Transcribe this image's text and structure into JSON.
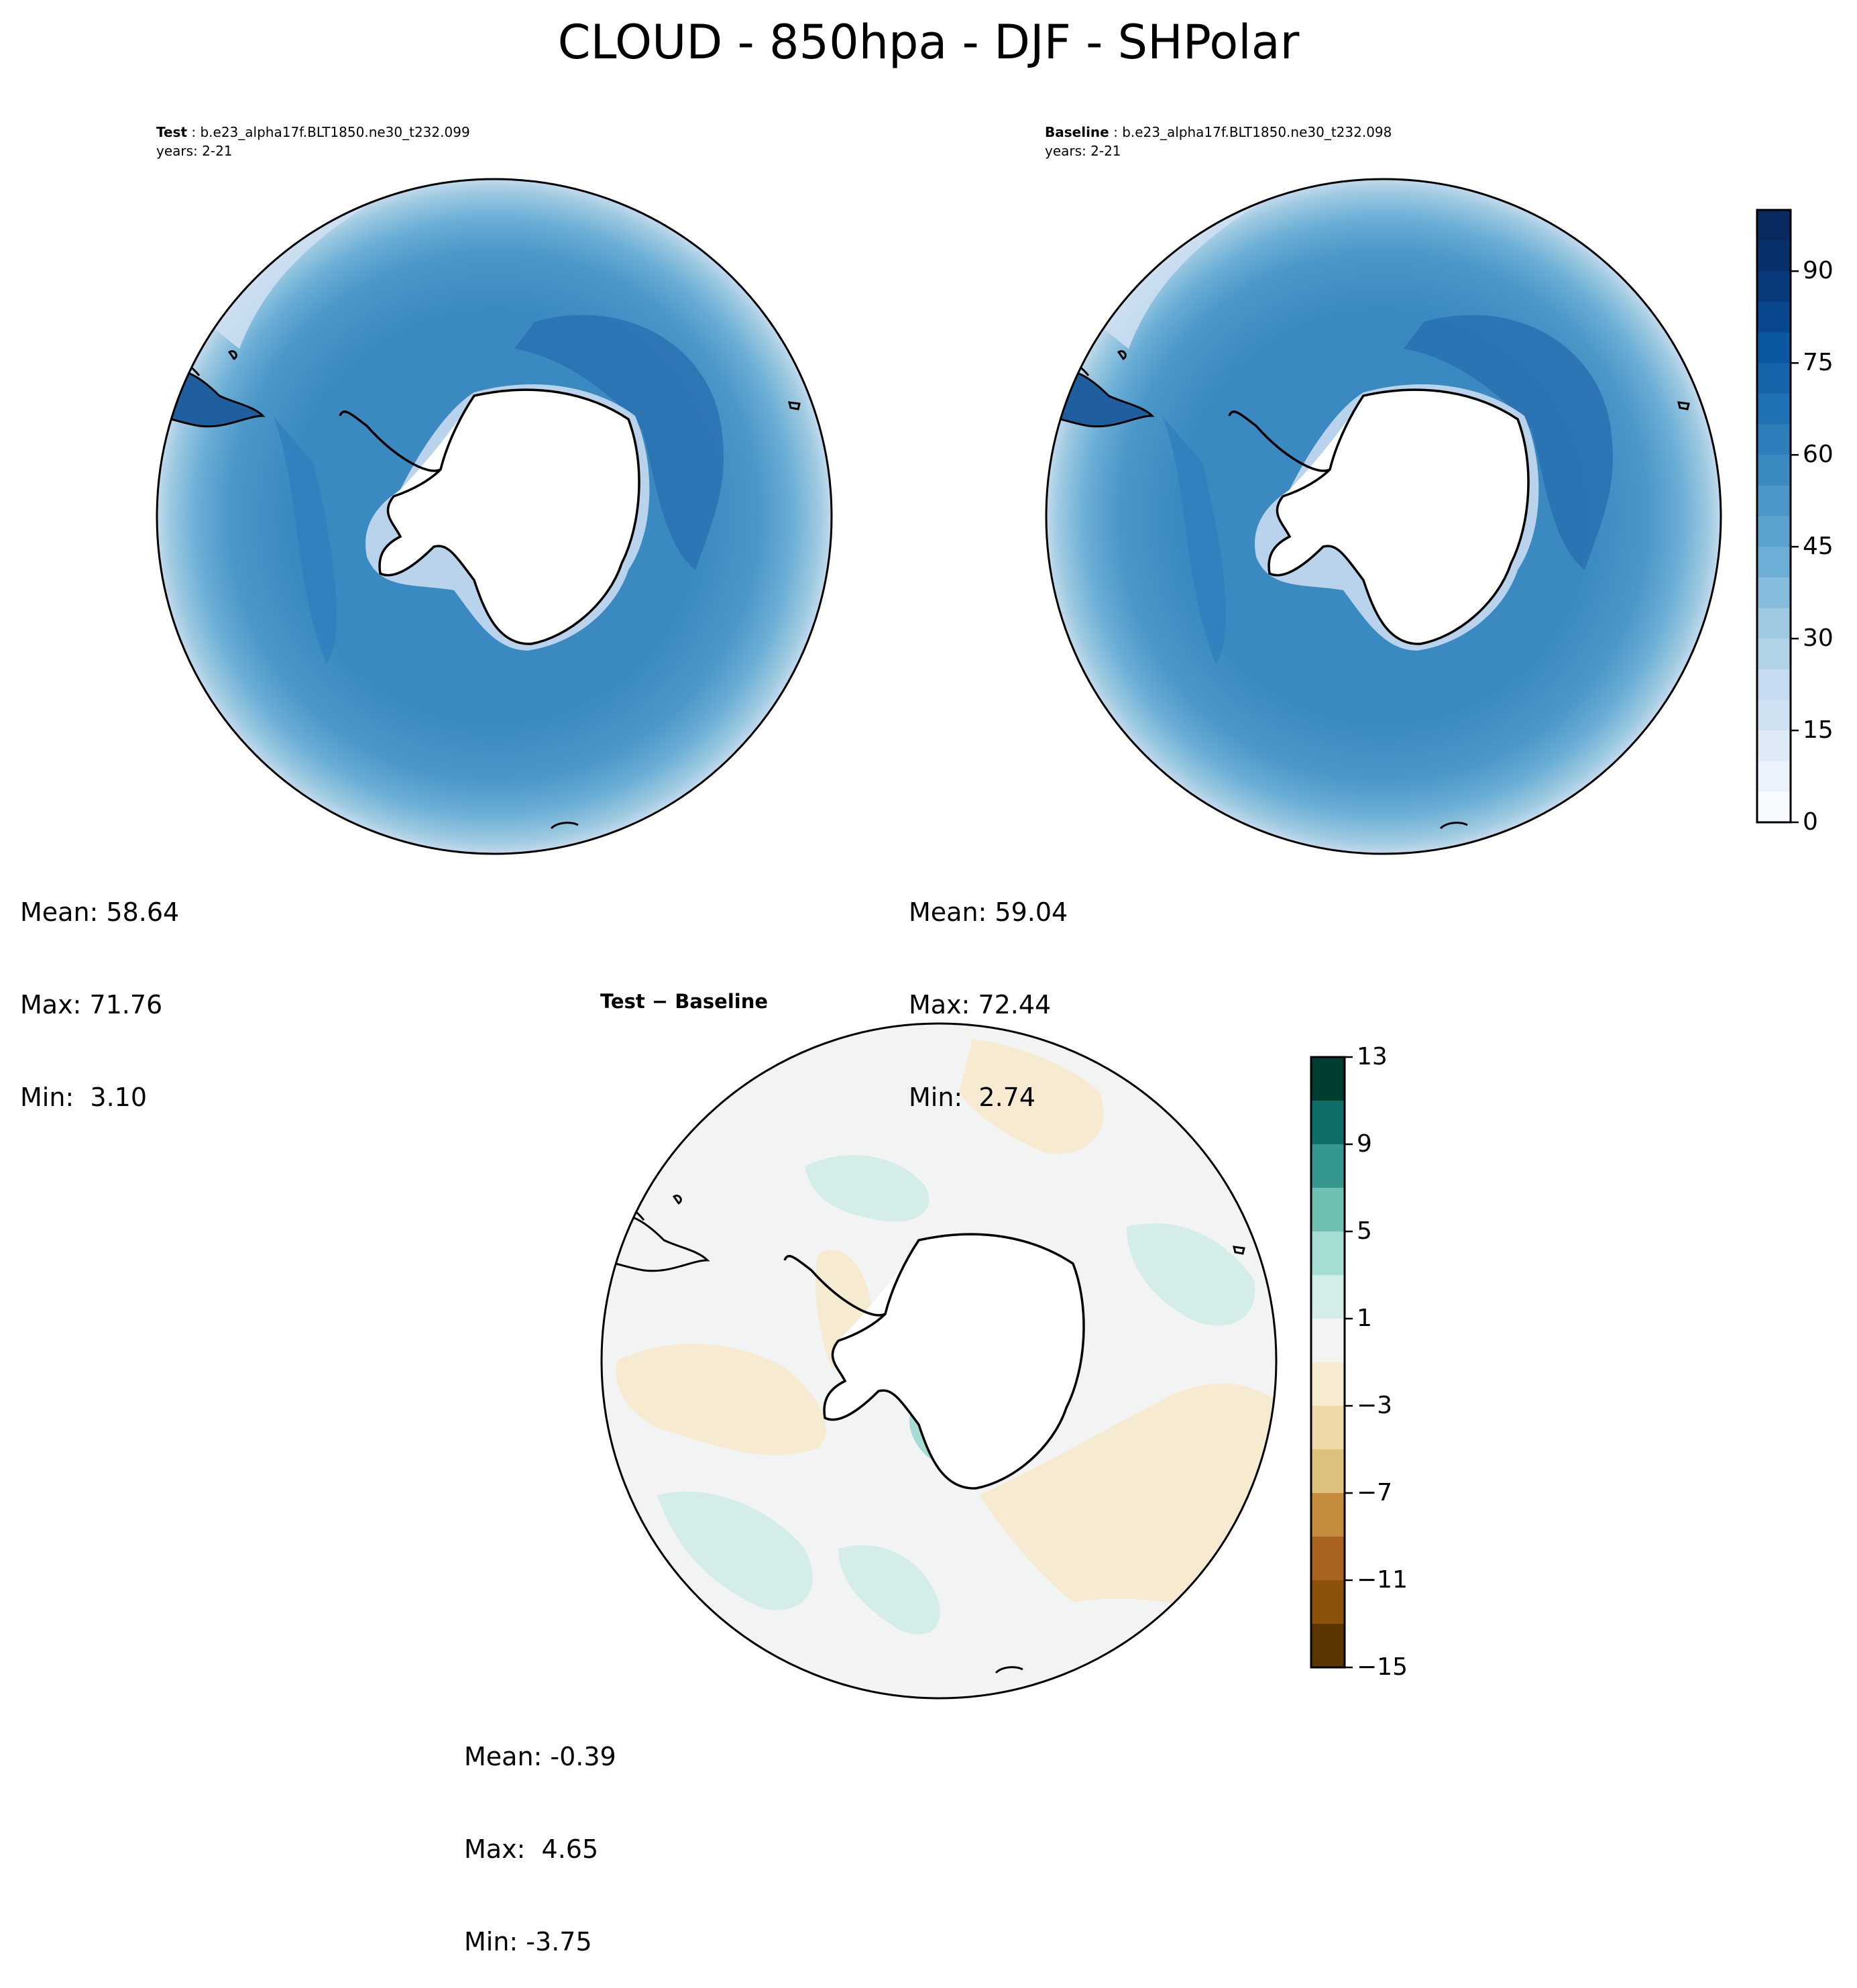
{
  "figure": {
    "title": "CLOUD - 850hpa - DJF - SHPolar"
  },
  "panels": [
    {
      "label": "Test",
      "case": " : b.e23_alpha17f.BLT1850.ne30_t232.099",
      "years": "years: 2-21",
      "stats": {
        "mean": "Mean: 58.64",
        "max": "Max: 71.76",
        "min": "Min:  3.10"
      }
    },
    {
      "label": "Baseline",
      "case": " : b.e23_alpha17f.BLT1850.ne30_t232.098",
      "years": "years: 2-21",
      "stats": {
        "mean": "Mean: 59.04",
        "max": "Max: 72.44",
        "min": "Min:  2.74"
      }
    },
    {
      "label": "Test − Baseline",
      "stats": {
        "mean": "Mean: -0.39",
        "max": "Max:  4.65",
        "min": "Min: -3.75"
      }
    }
  ],
  "colorbars": {
    "cloud": {
      "ticks": [
        "0",
        "15",
        "30",
        "45",
        "60",
        "75",
        "90"
      ],
      "tick_values": [
        0,
        15,
        30,
        45,
        60,
        75,
        90
      ],
      "range": [
        0,
        100
      ],
      "colors": [
        "#f7fbff",
        "#eaf2fb",
        "#deebf7",
        "#d0e1f2",
        "#c6dbef",
        "#b1d3e7",
        "#9ecae1",
        "#85bcdc",
        "#6baed6",
        "#5aa2cf",
        "#4a97c9",
        "#3a89c1",
        "#2f7ebc",
        "#2171b5",
        "#1764ab",
        "#0b57a0",
        "#08478e",
        "#08397a",
        "#08306b",
        "#082a60"
      ]
    },
    "diff": {
      "ticks": [
        "13",
        "9",
        "5",
        "1",
        "−3",
        "−7",
        "−11",
        "−15"
      ],
      "tick_values": [
        13,
        9,
        5,
        1,
        -3,
        -7,
        -11,
        -15
      ],
      "range": [
        -15,
        13
      ],
      "colors_top_to_bottom": [
        "#003c30",
        "#0f6e66",
        "#35978f",
        "#6dc0b2",
        "#a5dcd3",
        "#d5ede9",
        "#f2f3f2",
        "#f6ead0",
        "#f0d9a8",
        "#dfc17e",
        "#c48c3c",
        "#a86320",
        "#8c510a",
        "#5c3504"
      ]
    }
  },
  "map_colors": {
    "ocean_main": "#3a89c1",
    "ocean_outer": "#6baed6",
    "ocean_edge": "#c6dbef",
    "ocean_band": "#4a97c9",
    "ocean_max": "#2a72b3",
    "land": "#ffffff",
    "diff_neutral": "#f2f4f3",
    "diff_pos": "#d5ede9",
    "diff_pos_strong": "#a5dcd3",
    "diff_neg": "#f6ead0"
  }
}
